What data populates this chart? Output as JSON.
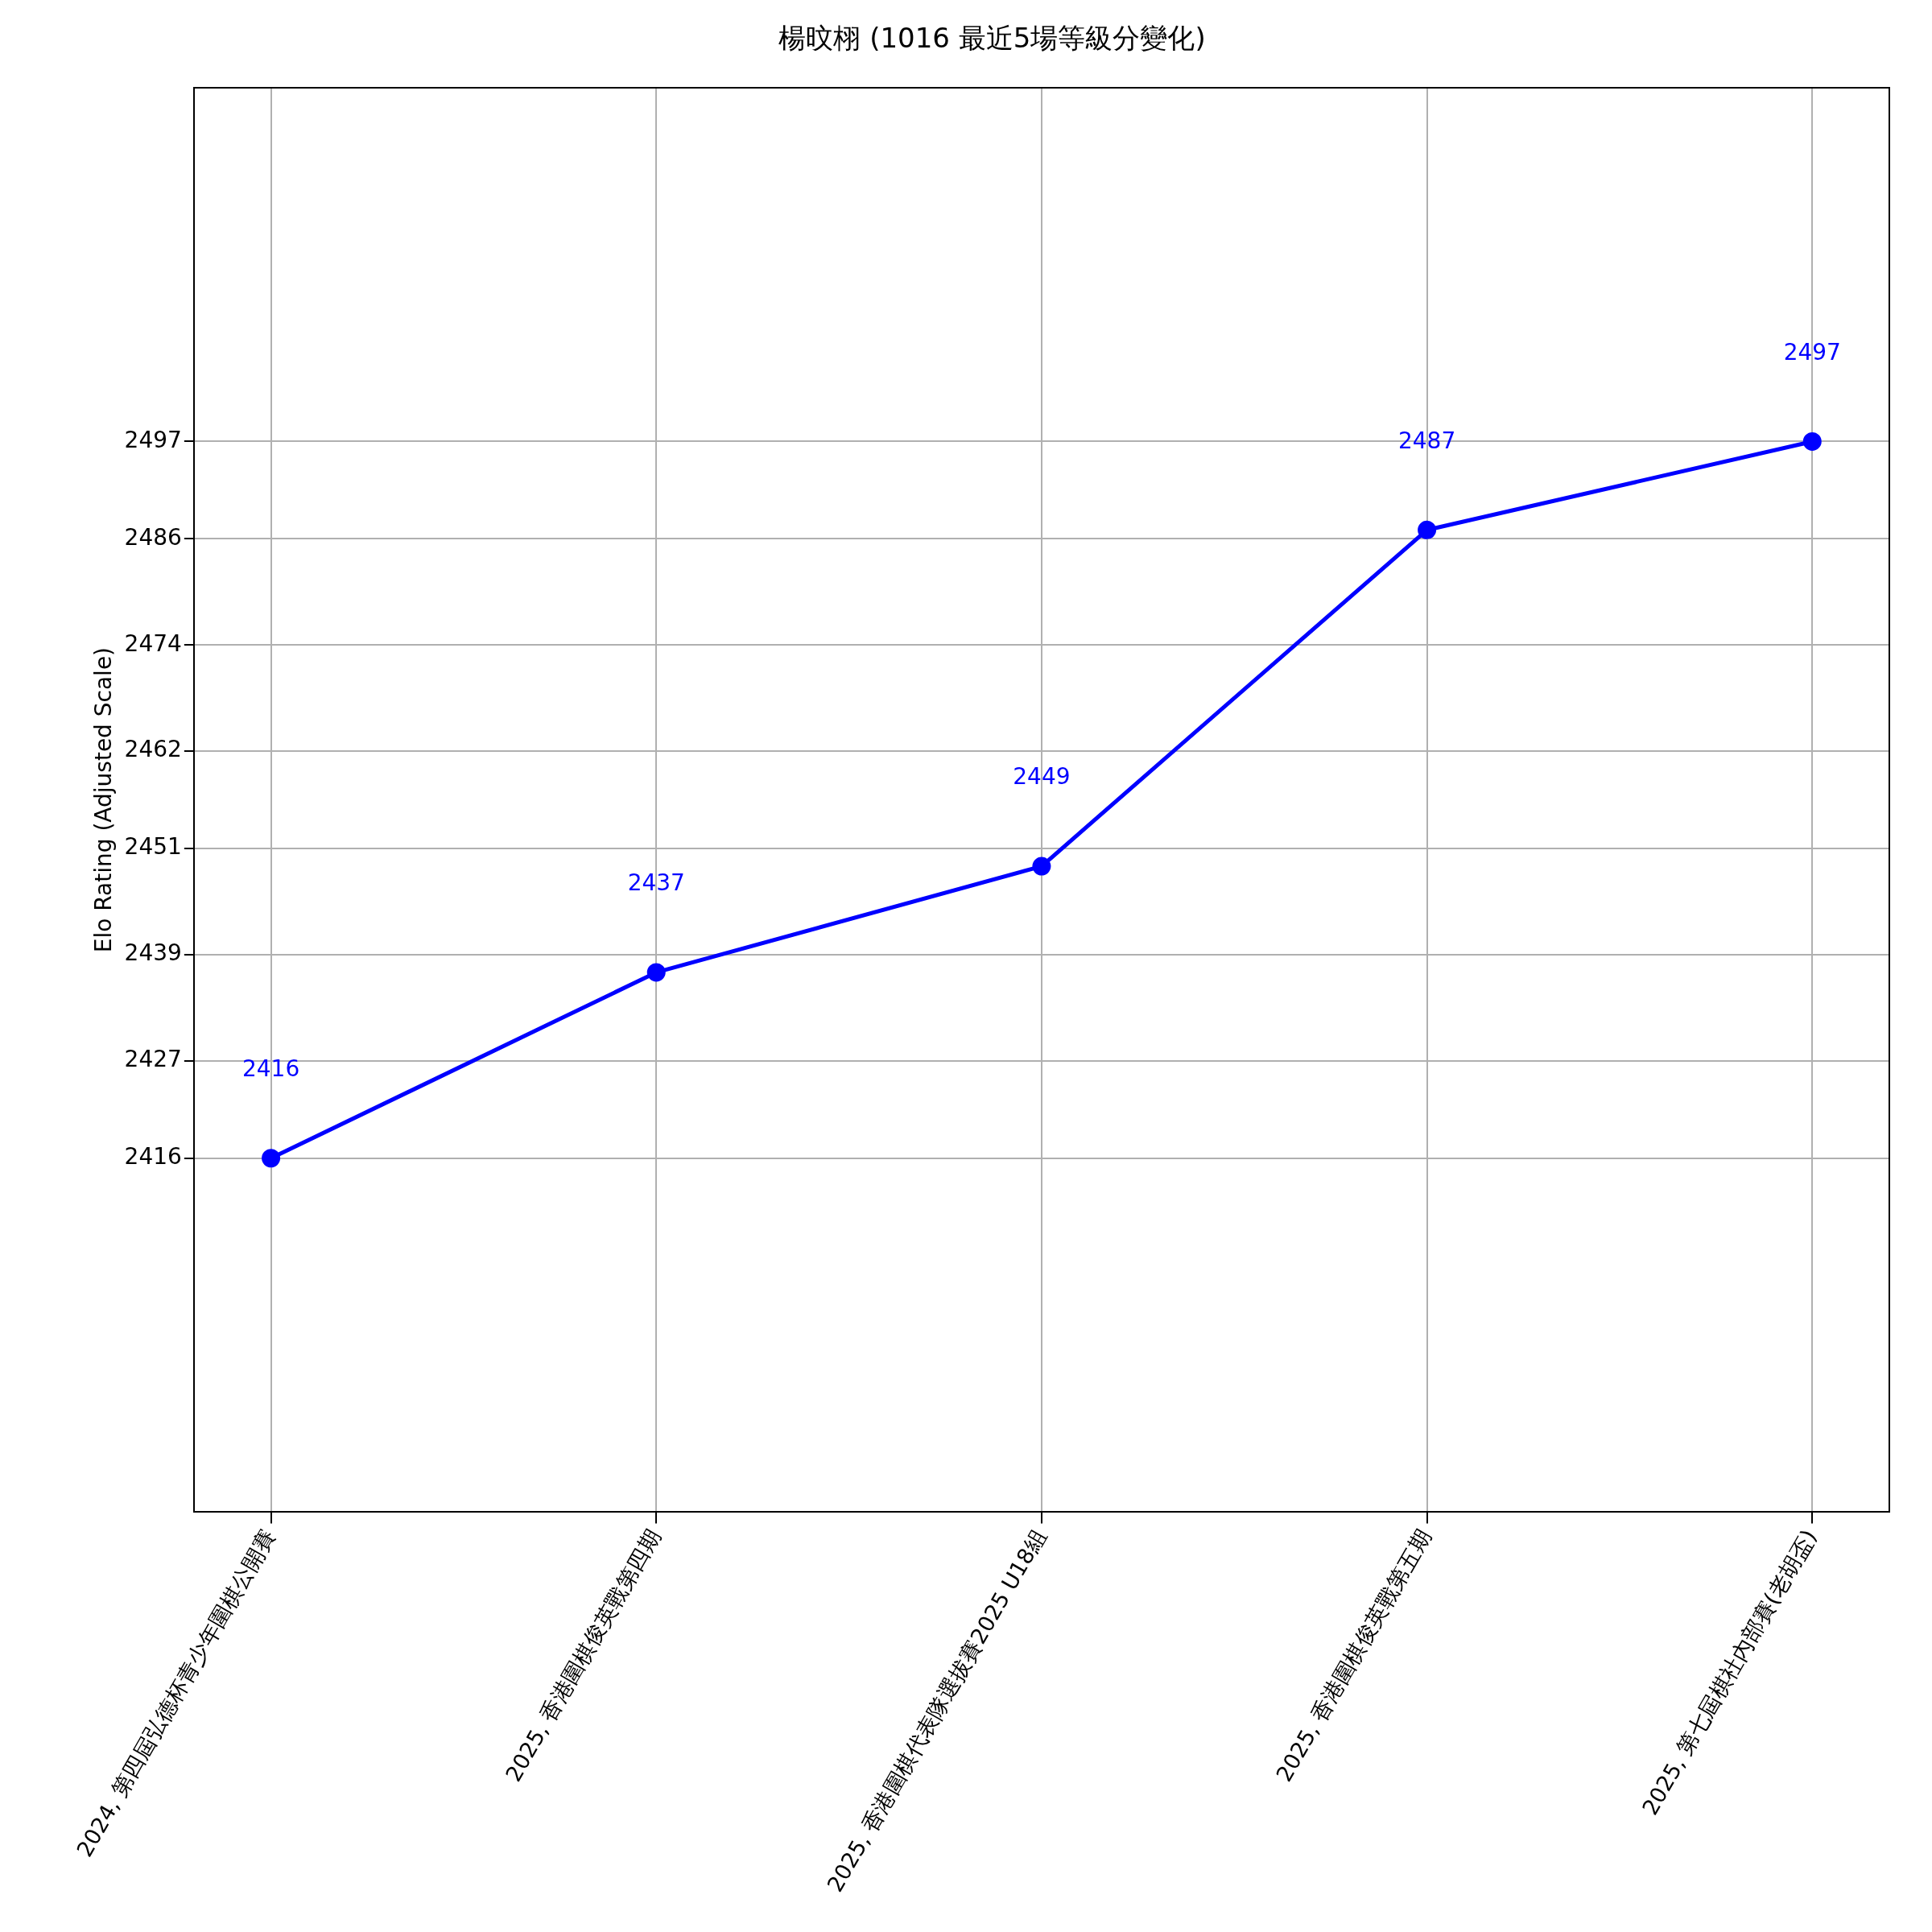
{
  "chart_data": {
    "type": "line",
    "title": "楊旼栩 (1016 最近5場等級分變化)",
    "ylabel": "Elo Rating (Adjusted Scale)",
    "categories": [
      "2024, 第四屆弘德杯青少年圍棋公開賽",
      "2025, 香港圍棋俊英戰第四期",
      "2025, 香港圍棋代表隊選拔賽2025 U18組",
      "2025, 香港圍棋俊英戰第五期",
      "2025, 第七屆棋社內部賽(老胡盃)"
    ],
    "series": [
      {
        "color": "#0000ff",
        "values": [
          2416,
          2437,
          2449,
          2487,
          2497
        ]
      }
    ],
    "ylim": [
      2376,
      2537
    ],
    "yticks": [
      2416,
      2427,
      2439,
      2451,
      2462,
      2474,
      2486,
      2497
    ],
    "grid": true,
    "marker": "circle",
    "line_style": "solid",
    "data_labels": true,
    "legend": false
  }
}
